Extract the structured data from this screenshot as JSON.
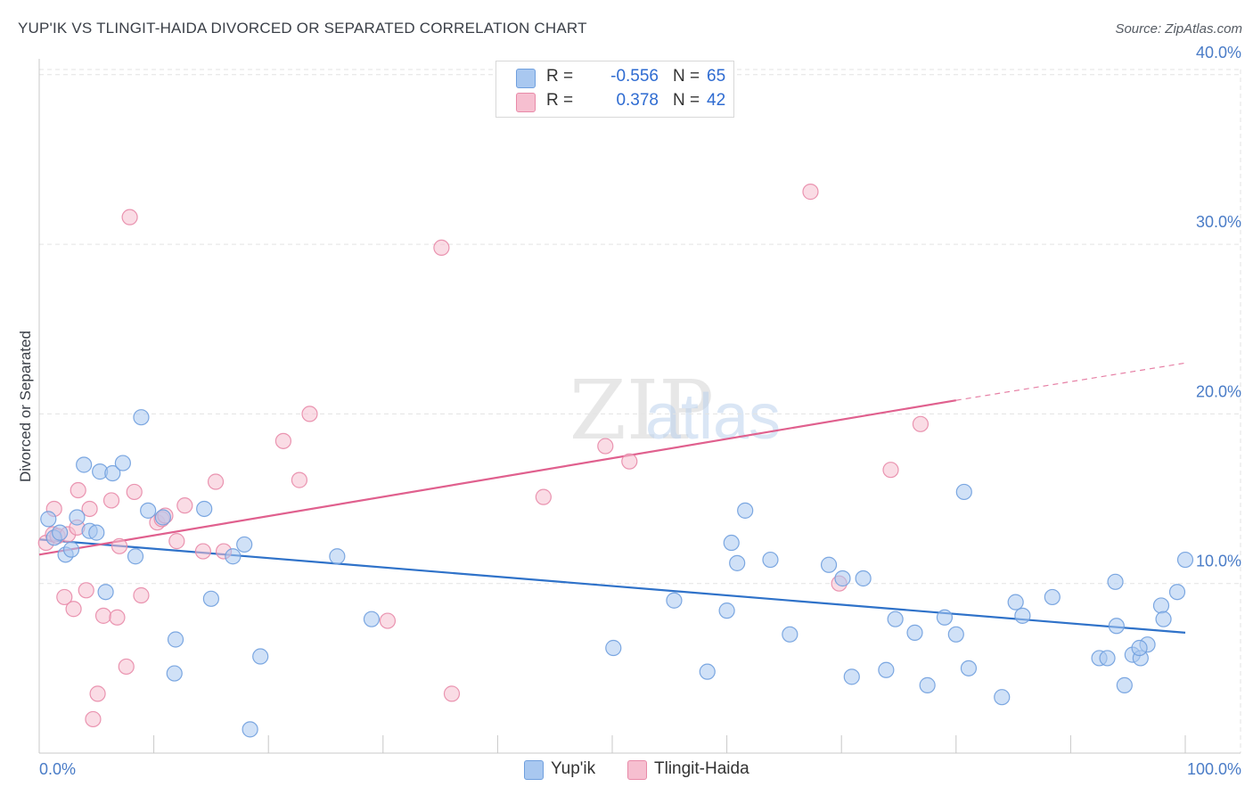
{
  "title": "YUP'IK VS TLINGIT-HAIDA DIVORCED OR SEPARATED CORRELATION CHART",
  "source": "Source: ZipAtlas.com",
  "watermark": {
    "zip": "ZIP",
    "atlas": "atlas"
  },
  "legend": {
    "rows": [
      {
        "r_label": "R =",
        "r_value": "-0.556",
        "n_label": "N =",
        "n_value": "65"
      },
      {
        "r_label": "R =",
        "r_value": "0.378",
        "n_label": "N =",
        "n_value": "42"
      }
    ]
  },
  "bottom_legend": {
    "yupik": "Yup'ik",
    "tlingit": "Tlingit-Haida"
  },
  "colors": {
    "yupik_fill": "#a9c8f0",
    "yupik_stroke": "#6f9fde",
    "yupik_line": "#2f72c9",
    "tlingit_fill": "#f6bfd0",
    "tlingit_stroke": "#e88aa8",
    "tlingit_line": "#e0608e",
    "tick_text": "#4a7cc7",
    "grid": "#e3e3e3"
  },
  "chart_data": {
    "type": "scatter",
    "title": "YUP'IK VS TLINGIT-HAIDA DIVORCED OR SEPARATED CORRELATION CHART",
    "xlabel": "",
    "ylabel": "Divorced or Separated",
    "xlim": [
      0,
      100
    ],
    "ylim": [
      0,
      42
    ],
    "x_tick_labels": [
      "0.0%",
      "100.0%"
    ],
    "y_ticks": [
      10,
      20,
      30,
      40
    ],
    "y_tick_labels": [
      "10.0%",
      "20.0%",
      "30.0%",
      "40.0%"
    ],
    "grid": true,
    "legend_position": "top-center",
    "series": [
      {
        "name": "Yup'ik",
        "r": -0.556,
        "n": 65,
        "trend": {
          "x": [
            0,
            100
          ],
          "y": [
            12.6,
            7.1
          ]
        },
        "points": [
          [
            0.8,
            13.8
          ],
          [
            1.3,
            12.7
          ],
          [
            1.8,
            13.0
          ],
          [
            2.3,
            11.7
          ],
          [
            2.8,
            12.0
          ],
          [
            3.3,
            13.9
          ],
          [
            3.9,
            17.0
          ],
          [
            4.4,
            13.1
          ],
          [
            5.0,
            13.0
          ],
          [
            5.3,
            16.6
          ],
          [
            5.8,
            9.5
          ],
          [
            6.4,
            16.5
          ],
          [
            7.3,
            17.1
          ],
          [
            8.4,
            11.6
          ],
          [
            8.9,
            19.8
          ],
          [
            9.5,
            14.3
          ],
          [
            10.8,
            13.9
          ],
          [
            11.9,
            6.7
          ],
          [
            11.8,
            4.7
          ],
          [
            14.4,
            14.4
          ],
          [
            15.0,
            9.1
          ],
          [
            16.9,
            11.6
          ],
          [
            17.9,
            12.3
          ],
          [
            18.4,
            1.4
          ],
          [
            19.3,
            5.7
          ],
          [
            26.0,
            11.6
          ],
          [
            29.0,
            7.9
          ],
          [
            50.1,
            6.2
          ],
          [
            55.4,
            9.0
          ],
          [
            58.3,
            4.8
          ],
          [
            60.0,
            8.4
          ],
          [
            60.4,
            12.4
          ],
          [
            60.9,
            11.2
          ],
          [
            61.6,
            14.3
          ],
          [
            63.8,
            11.4
          ],
          [
            65.5,
            7.0
          ],
          [
            68.9,
            11.1
          ],
          [
            70.1,
            10.3
          ],
          [
            70.9,
            4.5
          ],
          [
            71.9,
            10.3
          ],
          [
            73.9,
            4.9
          ],
          [
            74.7,
            7.9
          ],
          [
            76.4,
            7.1
          ],
          [
            77.5,
            4.0
          ],
          [
            79.0,
            8.0
          ],
          [
            80.0,
            7.0
          ],
          [
            80.7,
            15.4
          ],
          [
            81.1,
            5.0
          ],
          [
            84.0,
            3.3
          ],
          [
            85.2,
            8.9
          ],
          [
            85.8,
            8.1
          ],
          [
            88.4,
            9.2
          ],
          [
            92.5,
            5.6
          ],
          [
            93.2,
            5.6
          ],
          [
            93.9,
            10.1
          ],
          [
            94.0,
            7.5
          ],
          [
            94.7,
            4.0
          ],
          [
            95.4,
            5.8
          ],
          [
            96.1,
            5.6
          ],
          [
            96.7,
            6.4
          ],
          [
            97.9,
            8.7
          ],
          [
            98.1,
            7.9
          ],
          [
            99.3,
            9.5
          ],
          [
            100.0,
            11.4
          ],
          [
            96.0,
            6.2
          ]
        ]
      },
      {
        "name": "Tlingit-Haida",
        "r": 0.378,
        "n": 42,
        "trend": {
          "x": [
            0,
            80
          ],
          "y": [
            11.7,
            20.8
          ],
          "dashed_to": {
            "x": 100,
            "y": 23.0
          }
        },
        "points": [
          [
            0.6,
            12.4
          ],
          [
            1.2,
            12.9
          ],
          [
            1.3,
            14.4
          ],
          [
            1.6,
            12.8
          ],
          [
            2.2,
            9.2
          ],
          [
            2.5,
            12.9
          ],
          [
            3.0,
            8.5
          ],
          [
            3.3,
            13.3
          ],
          [
            3.4,
            15.5
          ],
          [
            4.1,
            9.6
          ],
          [
            4.4,
            14.4
          ],
          [
            4.7,
            2.0
          ],
          [
            5.1,
            3.5
          ],
          [
            5.6,
            8.1
          ],
          [
            6.3,
            14.9
          ],
          [
            6.8,
            8.0
          ],
          [
            7.0,
            12.2
          ],
          [
            7.6,
            5.1
          ],
          [
            7.9,
            31.6
          ],
          [
            8.3,
            15.4
          ],
          [
            8.9,
            9.3
          ],
          [
            10.3,
            13.6
          ],
          [
            10.7,
            13.8
          ],
          [
            11.0,
            14.0
          ],
          [
            12.0,
            12.5
          ],
          [
            12.7,
            14.6
          ],
          [
            14.3,
            11.9
          ],
          [
            15.4,
            16.0
          ],
          [
            16.1,
            11.9
          ],
          [
            21.3,
            18.4
          ],
          [
            22.7,
            16.1
          ],
          [
            23.6,
            20.0
          ],
          [
            30.4,
            7.8
          ],
          [
            35.1,
            29.8
          ],
          [
            36.0,
            3.5
          ],
          [
            44.0,
            15.1
          ],
          [
            49.4,
            18.1
          ],
          [
            51.5,
            17.2
          ],
          [
            67.3,
            33.1
          ],
          [
            69.8,
            10.0
          ],
          [
            74.3,
            16.7
          ],
          [
            76.9,
            19.4
          ]
        ]
      }
    ]
  }
}
